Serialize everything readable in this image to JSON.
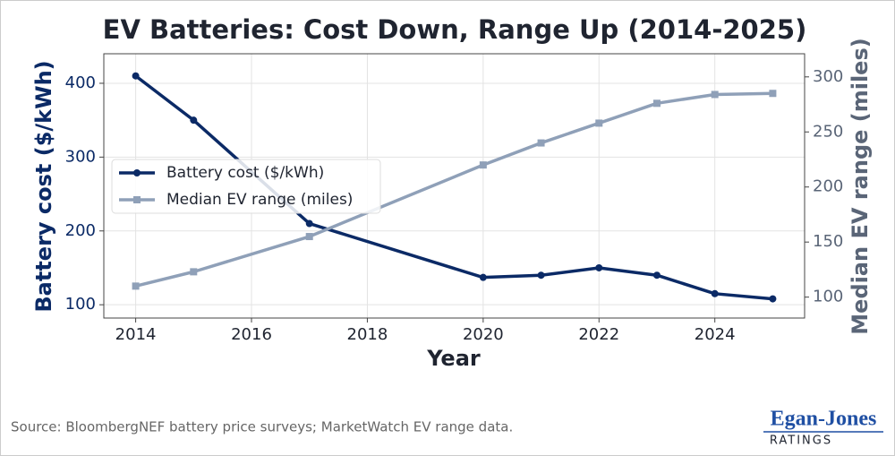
{
  "chart_data": {
    "type": "line",
    "title": "EV Batteries: Cost Down, Range Up (2014-2025)",
    "x_label": "Year",
    "y_label": "Battery cost ($/kWh)",
    "y2_label": "Median EV range (miles)",
    "x": [
      2014,
      2015,
      2017,
      2020,
      2021,
      2022,
      2023,
      2024,
      2025
    ],
    "series": [
      {
        "name": "Battery cost ($/kWh)",
        "color": "#0b2a66",
        "marker": "circle",
        "values": [
          410,
          350,
          210,
          137,
          140,
          150,
          140,
          115,
          108
        ]
      },
      {
        "name": "Median EV range (miles)",
        "color": "#8fa0b8",
        "marker": "square",
        "axis": "y2",
        "values": [
          110,
          123,
          155,
          220,
          240,
          258,
          276,
          284,
          285
        ]
      }
    ],
    "xlim": [
      2013.45,
      2025.55
    ],
    "xticks": [
      2014,
      2016,
      2018,
      2020,
      2022,
      2024
    ],
    "ylim": [
      82,
      440
    ],
    "yticks": [
      100,
      200,
      300,
      400
    ],
    "y2lim": [
      81,
      321
    ],
    "y2ticks": [
      100,
      150,
      200,
      250,
      300
    ],
    "grid": true,
    "legend": "center left",
    "source": "Source: BloombergNEF battery price surveys; MarketWatch EV range data.",
    "logo": {
      "name": "Egan-Jones",
      "tagline": "RATINGS"
    }
  }
}
